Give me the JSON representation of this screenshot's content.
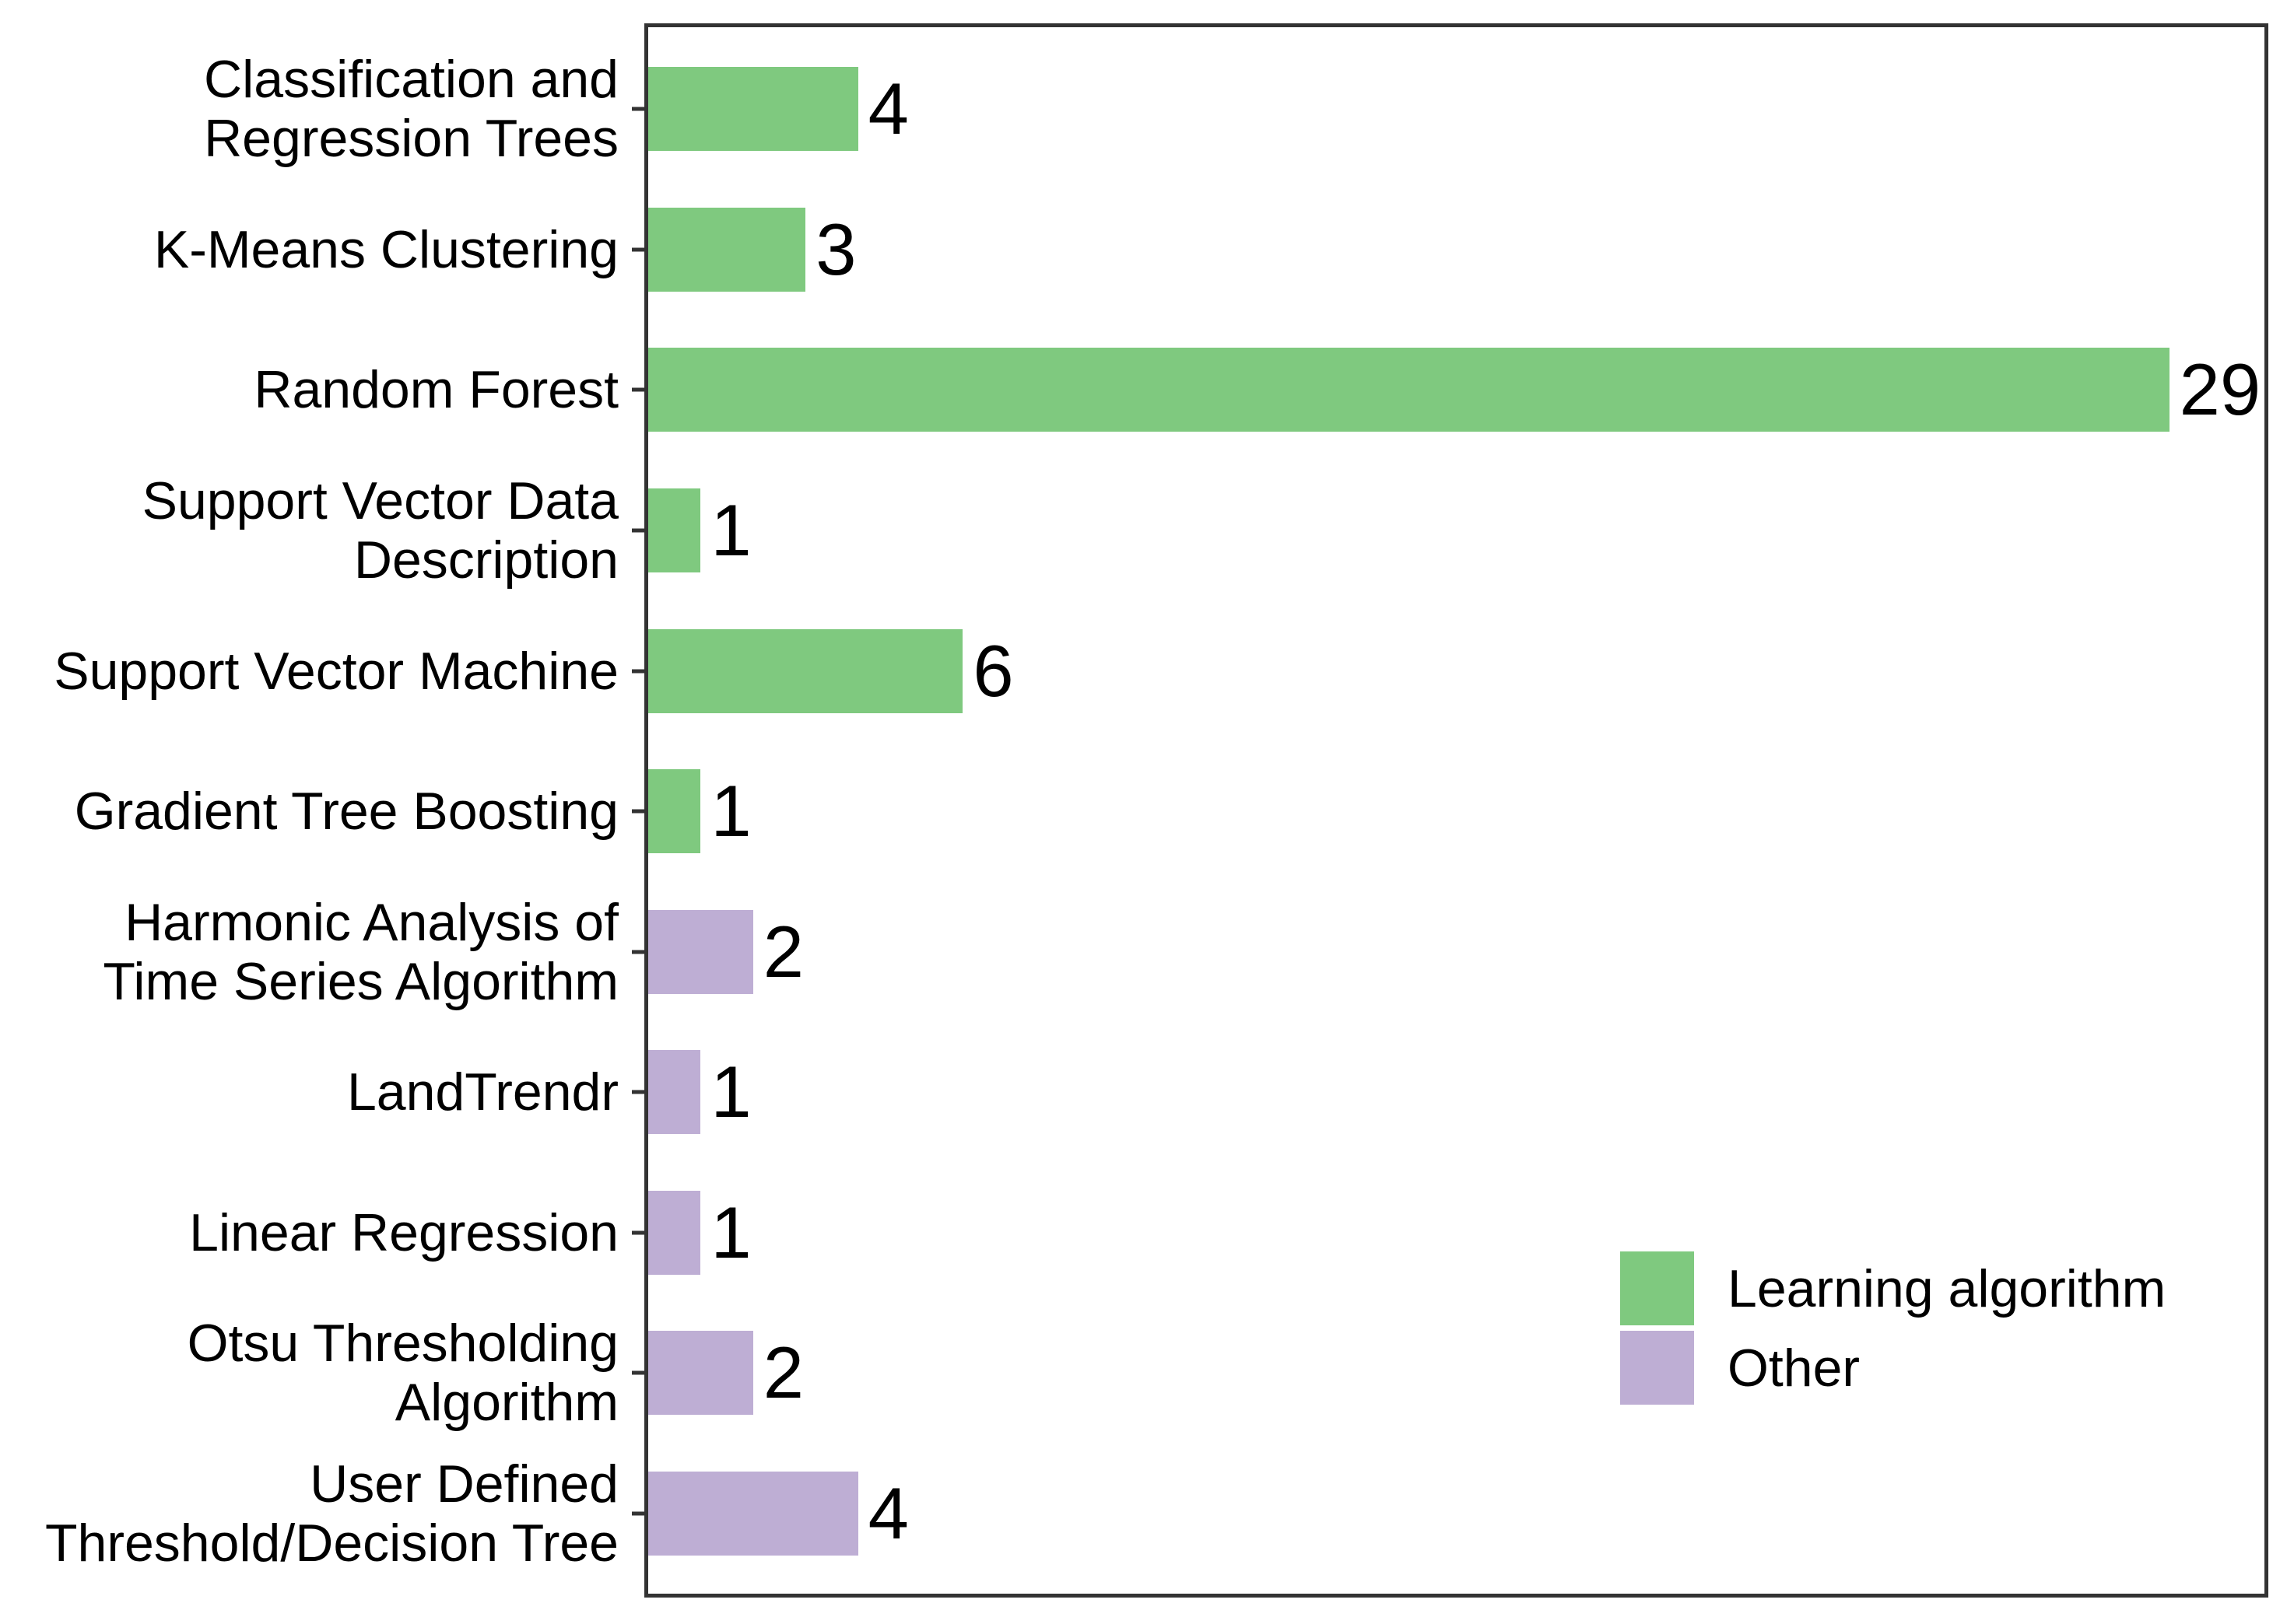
{
  "chart_data": {
    "type": "bar",
    "orientation": "horizontal",
    "title": "",
    "xlabel": "",
    "ylabel": "",
    "grid": false,
    "xlim": [
      0,
      31
    ],
    "categories": [
      "Classification and\nRegression Trees",
      "K-Means Clustering",
      "Random Forest",
      "Support Vector Data\nDescription",
      "Support Vector Machine",
      "Gradient Tree Boosting",
      "Harmonic Analysis of\nTime Series Algorithm",
      "LandTrendr",
      "Linear Regression",
      "Otsu Thresholding\nAlgorithm",
      "User Defined\nThreshold/Decision Tree"
    ],
    "values": [
      4,
      3,
      29,
      1,
      6,
      1,
      2,
      1,
      1,
      2,
      4
    ],
    "value_labels": [
      "4",
      "3",
      "29",
      "1",
      "6",
      "1",
      "2",
      "1",
      "1",
      "2",
      "4"
    ],
    "groups": [
      "Learning algorithm",
      "Learning algorithm",
      "Learning algorithm",
      "Learning algorithm",
      "Learning algorithm",
      "Learning algorithm",
      "Other",
      "Other",
      "Other",
      "Other",
      "Other"
    ],
    "colors": {
      "Learning algorithm": "#7FC97F",
      "Other": "#BEAED4"
    },
    "axis_color": "#333333",
    "text_color": "#000000",
    "legend": {
      "position": "inside-bottom-right",
      "entries": [
        {
          "label": "Learning algorithm",
          "color": "#7FC97F"
        },
        {
          "label": "Other",
          "color": "#BEAED4"
        }
      ]
    }
  }
}
